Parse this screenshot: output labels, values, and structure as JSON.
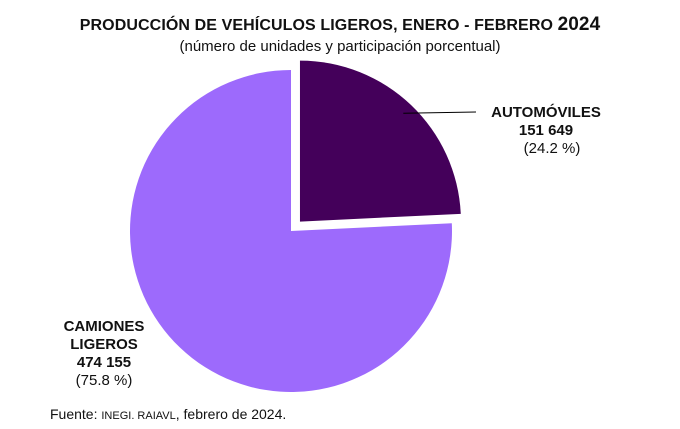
{
  "chart_data": {
    "type": "pie",
    "title": "PRODUCCIÓN DE VEHÍCULOS LIGEROS, ENERO - FEBRERO",
    "title_year": "2024",
    "subtitle": "(número de unidades y participación porcentual)",
    "slices": [
      {
        "name": "AUTOMÓVILES",
        "value": 151649,
        "value_label": "151 649",
        "percent": 24.2,
        "percent_label": "(24.2 %)",
        "color": "#44005a",
        "exploded": true
      },
      {
        "name": "CAMIONES LIGEROS",
        "name_line1": "CAMIONES",
        "name_line2": "LIGEROS",
        "value": 474155,
        "value_label": "474  155",
        "percent": 75.8,
        "percent_label": "(75.8 %)",
        "color": "#9d6afc",
        "exploded": false
      }
    ],
    "source_prefix": "Fuente: ",
    "source_org": "INEGI. RAIAVL",
    "source_suffix": ", febrero de 2024."
  }
}
